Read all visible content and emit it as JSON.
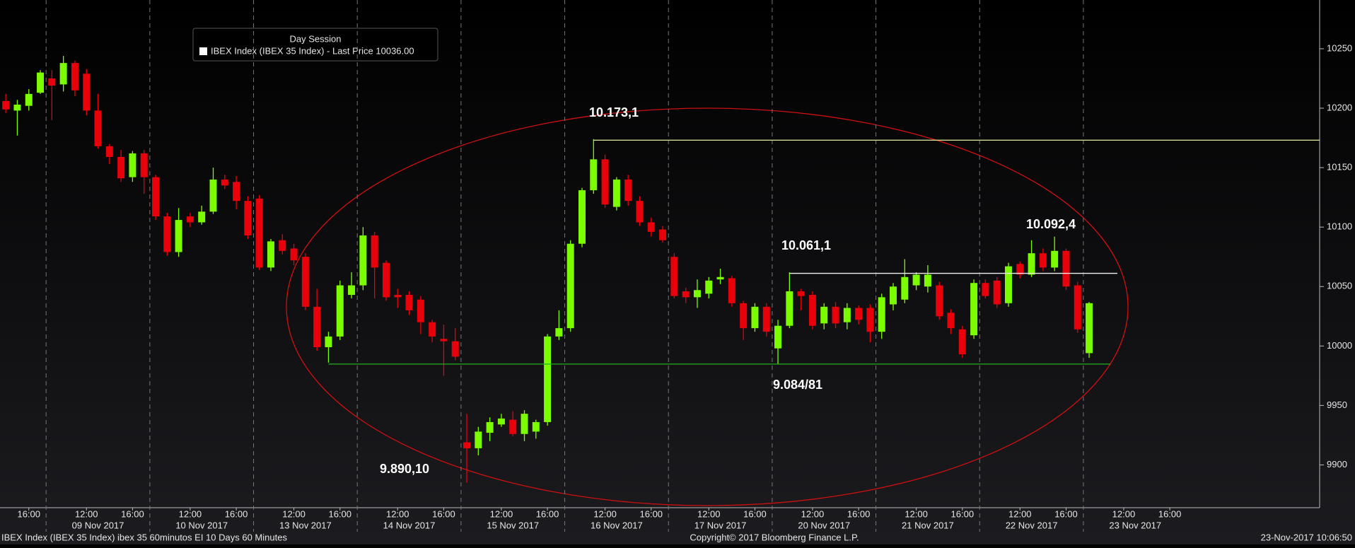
{
  "chart_data": {
    "type": "candlestick",
    "legend_title": "Day Session",
    "series_name": "IBEX Index (IBEX 35 Index) - Last Price 10036.00",
    "up_color": "#7cfc00",
    "down_color": "#e8000b",
    "open": [
      10206,
      10198,
      10202,
      10213,
      10225,
      10220,
      10238,
      10229,
      10198,
      10168,
      10159,
      10142,
      10162,
      10142,
      10109,
      10079,
      10109,
      10104,
      10113,
      10140,
      10138,
      10122,
      10124,
      10066,
      10089,
      10082,
      10075,
      10033,
      9999,
      10008,
      10043,
      10051,
      10093,
      10070,
      10043,
      10043,
      10039,
      10020,
      10006,
      10004,
      9919,
      9914,
      9927,
      9934,
      9938,
      9926,
      9928,
      9936,
      10008,
      10015,
      10086,
      10131,
      10157,
      10117,
      10140,
      10122,
      10104,
      10098,
      10075,
      10046,
      10041,
      10044,
      10056,
      10057,
      10036,
      10015,
      10033,
      9998,
      10017,
      10046,
      10043,
      10019,
      10033,
      10020,
      10032,
      10032,
      10012,
      10035,
      10039,
      10051,
      10050,
      10051,
      10028,
      10014,
      10009,
      10053,
      10055,
      10036,
      10069,
      10060,
      10078,
      10066,
      10080,
      10051,
      9994
    ],
    "high": [
      10212,
      10207,
      10216,
      10232,
      10232,
      10244,
      10240,
      10233,
      10212,
      10170,
      10165,
      10164,
      10165,
      10144,
      10112,
      10116,
      10112,
      10118,
      10150,
      10144,
      10143,
      10126,
      10127,
      10090,
      10094,
      10086,
      10078,
      10048,
      10012,
      10055,
      10062,
      10100,
      10096,
      10072,
      10048,
      10046,
      10042,
      10022,
      10018,
      10015,
      9943,
      9932,
      9940,
      9943,
      9945,
      9946,
      9938,
      10010,
      10030,
      10089,
      10133,
      10174,
      10161,
      10142,
      10144,
      10126,
      10108,
      10101,
      10078,
      10049,
      10056,
      10058,
      10065,
      10059,
      10038,
      10036,
      10036,
      10022,
      10062,
      10048,
      10046,
      10036,
      10037,
      10036,
      10034,
      10035,
      10044,
      10053,
      10073,
      10062,
      10068,
      10054,
      10031,
      10017,
      10056,
      10056,
      10058,
      10070,
      10071,
      10089,
      10082,
      10092,
      10082,
      10054,
      10037
    ],
    "low": [
      10196,
      10177,
      10198,
      10212,
      10190,
      10214,
      10210,
      10194,
      10166,
      10153,
      10138,
      10138,
      10128,
      10106,
      10076,
      10075,
      10100,
      10102,
      10111,
      10132,
      10115,
      10090,
      10064,
      10063,
      10077,
      10068,
      10030,
      9996,
      9986,
      10005,
      10040,
      10047,
      10040,
      10038,
      10032,
      10026,
      10010,
      10003,
      9975,
      9988,
      9885,
      9908,
      9920,
      9932,
      9924,
      9920,
      9922,
      9933,
      10005,
      10012,
      10083,
      10128,
      10116,
      10114,
      10118,
      10101,
      10092,
      10087,
      10040,
      10036,
      10032,
      10040,
      10052,
      10033,
      10005,
      10012,
      10008,
      9985,
      10015,
      10030,
      10014,
      10014,
      10015,
      10014,
      10018,
      10003,
      10006,
      10030,
      10036,
      10047,
      10045,
      10022,
      10010,
      9990,
      10006,
      10040,
      10032,
      10033,
      10057,
      10058,
      10063,
      10063,
      10047,
      10011,
      9990
    ],
    "close": [
      10199,
      10203,
      10212,
      10230,
      10219,
      10238,
      10215,
      10198,
      10168,
      10159,
      10141,
      10162,
      10142,
      10109,
      10079,
      10106,
      10104,
      10113,
      10140,
      10135,
      10122,
      10093,
      10066,
      10088,
      10080,
      10072,
      10033,
      9999,
      10008,
      10051,
      10051,
      10093,
      10066,
      10041,
      10041,
      10030,
      10020,
      10008,
      10004,
      9991,
      9914,
      9928,
      9936,
      9939,
      9926,
      9943,
      9936,
      10008,
      10015,
      10086,
      10131,
      10157,
      10119,
      10140,
      10122,
      10104,
      10096,
      10089,
      10042,
      10041,
      10047,
      10055,
      10058,
      10036,
      10015,
      10033,
      10012,
      10017,
      10046,
      10042,
      10017,
      10033,
      10019,
      10032,
      10022,
      10012,
      10041,
      10050,
      10058,
      10060,
      10060,
      10025,
      10015,
      9993,
      10053,
      10042,
      10035,
      10067,
      10060,
      10078,
      10066,
      10080,
      10050,
      10014,
      10036
    ],
    "xlim": [
      -0.5,
      114
    ],
    "xticks": [
      {
        "value": 2,
        "label": "16:00"
      },
      {
        "value": 7,
        "label": "12:00"
      },
      {
        "value": 11,
        "label": "16:00"
      },
      {
        "value": 16,
        "label": "12:00"
      },
      {
        "value": 20,
        "label": "16:00"
      },
      {
        "value": 25,
        "label": "12:00"
      },
      {
        "value": 29,
        "label": "16:00"
      },
      {
        "value": 34,
        "label": "12:00"
      },
      {
        "value": 38,
        "label": "16:00"
      },
      {
        "value": 43,
        "label": "12:00"
      },
      {
        "value": 47,
        "label": "16:00"
      },
      {
        "value": 52,
        "label": "12:00"
      },
      {
        "value": 56,
        "label": "16:00"
      },
      {
        "value": 61,
        "label": "12:00"
      },
      {
        "value": 65,
        "label": "16:00"
      },
      {
        "value": 70,
        "label": "12:00"
      },
      {
        "value": 74,
        "label": "16:00"
      },
      {
        "value": 79,
        "label": "12:00"
      },
      {
        "value": 83,
        "label": "16:00"
      },
      {
        "value": 88,
        "label": "12:00"
      },
      {
        "value": 92,
        "label": "16:00"
      },
      {
        "value": 97,
        "label": "12:00"
      },
      {
        "value": 101,
        "label": "16:00"
      }
    ],
    "date_ticks": [
      {
        "value": 8,
        "label": "09 Nov 2017"
      },
      {
        "value": 17,
        "label": "10 Nov 2017"
      },
      {
        "value": 26,
        "label": "13 Nov 2017"
      },
      {
        "value": 35,
        "label": "14 Nov 2017"
      },
      {
        "value": 44,
        "label": "15 Nov 2017"
      },
      {
        "value": 53,
        "label": "16 Nov 2017"
      },
      {
        "value": 62,
        "label": "17 Nov 2017"
      },
      {
        "value": 71,
        "label": "20 Nov 2017"
      },
      {
        "value": 80,
        "label": "21 Nov 2017"
      },
      {
        "value": 89,
        "label": "22 Nov 2017"
      },
      {
        "value": 98,
        "label": "23 Nov 2017"
      }
    ],
    "day_breaks": [
      3.5,
      12.5,
      21.5,
      30.5,
      39.5,
      48.5,
      57.5,
      66.5,
      75.5,
      84.5,
      93.5
    ],
    "ylim": [
      9864,
      10291
    ],
    "yticks": [
      9900,
      9950,
      10000,
      10050,
      10100,
      10150,
      10200,
      10250
    ],
    "levels": [
      {
        "label": "10.173,1",
        "value": 10173.1,
        "color": "#e6f0a0"
      },
      {
        "label": "10.061,1",
        "value": 10061.1,
        "color": "#f0f0f0"
      },
      {
        "value": 9984.8,
        "color": "#22b022"
      }
    ],
    "annotations": [
      "10.092,4",
      "9.890,10",
      "9.084/81"
    ],
    "footer_left": "IBEX Index (IBEX 35 Index) ibex 35 60minutos EI 10 Days 60 Minutes",
    "footer_center": "Copyright© 2017 Bloomberg Finance L.P.",
    "footer_right": "23-Nov-2017 10:06:50"
  }
}
